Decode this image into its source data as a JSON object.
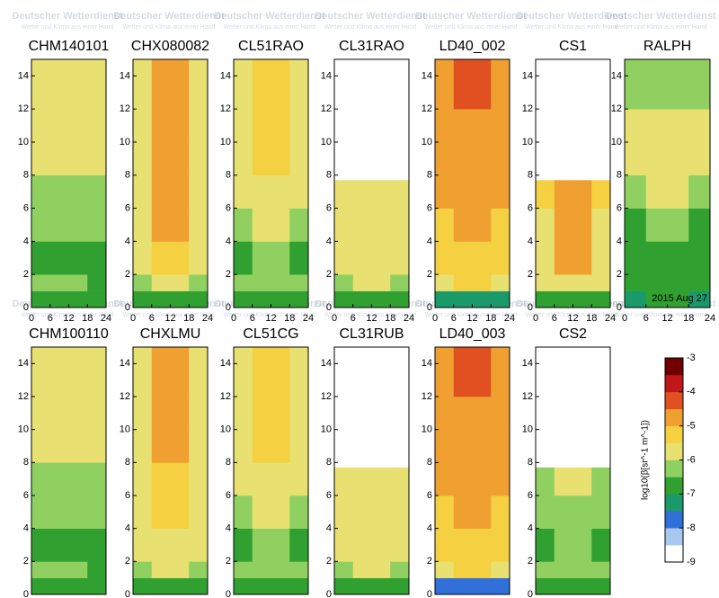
{
  "watermark": {
    "title": "Deutscher Wetterdienst",
    "subtitle": "Wetter und Klima aus einer Hand"
  },
  "chart_data": [
    {
      "type": "heatmap",
      "title": "CHM140101",
      "xlim": [
        0,
        24
      ],
      "ylim": [
        0,
        15
      ],
      "xticks": [
        0,
        6,
        12,
        18,
        24
      ],
      "yticks": [
        0,
        2,
        4,
        6,
        8,
        10,
        12,
        14
      ],
      "x_edges": [
        0,
        6,
        18,
        24
      ],
      "y_edges": [
        0,
        1,
        2,
        4,
        6,
        8,
        10,
        12,
        15
      ],
      "values": [
        [
          -7.0,
          -7.0,
          -7.0
        ],
        [
          -6.5,
          -6.4,
          -6.6
        ],
        [
          -6.8,
          -6.6,
          -6.8
        ],
        [
          -6.4,
          -6.4,
          -6.5
        ],
        [
          -6.2,
          -6.1,
          -6.2
        ],
        [
          -5.9,
          -5.9,
          -6.0
        ],
        [
          -5.9,
          -5.8,
          -5.9
        ],
        [
          -5.9,
          -5.9,
          -5.9
        ]
      ]
    },
    {
      "type": "heatmap",
      "title": "CHX080082",
      "xlim": [
        0,
        24
      ],
      "ylim": [
        0,
        15
      ],
      "xticks": [
        0,
        6,
        12,
        18,
        24
      ],
      "yticks": [
        0,
        2,
        4,
        6,
        8,
        10,
        12,
        14
      ],
      "x_edges": [
        0,
        6,
        18,
        24
      ],
      "y_edges": [
        0,
        1,
        2,
        4,
        6,
        8,
        10,
        12,
        15
      ],
      "values": [
        [
          -6.8,
          -6.7,
          -6.8
        ],
        [
          -6.3,
          -5.7,
          -6.4
        ],
        [
          -6.0,
          -5.2,
          -6.0
        ],
        [
          -5.9,
          -5.0,
          -5.9
        ],
        [
          -5.8,
          -4.8,
          -5.8
        ],
        [
          -5.8,
          -4.7,
          -5.8
        ],
        [
          -5.7,
          -4.7,
          -5.7
        ],
        [
          -5.7,
          -4.7,
          -5.7
        ]
      ]
    },
    {
      "type": "heatmap",
      "title": "CL51RAO",
      "xlim": [
        0,
        24
      ],
      "ylim": [
        0,
        15
      ],
      "xticks": [
        0,
        6,
        12,
        18,
        24
      ],
      "yticks": [
        0,
        2,
        4,
        6,
        8,
        10,
        12,
        14
      ],
      "x_edges": [
        0,
        6,
        18,
        24
      ],
      "y_edges": [
        0,
        1,
        2,
        4,
        6,
        8,
        10,
        12,
        15
      ],
      "values": [
        [
          -7.0,
          -7.0,
          -7.0
        ],
        [
          -6.5,
          -6.3,
          -6.5
        ],
        [
          -6.7,
          -6.2,
          -6.7
        ],
        [
          -6.3,
          -5.8,
          -6.3
        ],
        [
          -6.0,
          -5.6,
          -6.0
        ],
        [
          -5.8,
          -5.5,
          -5.8
        ],
        [
          -5.7,
          -5.5,
          -5.7
        ],
        [
          -5.6,
          -5.5,
          -5.6
        ]
      ]
    },
    {
      "type": "heatmap",
      "title": "CL31RAO",
      "xlim": [
        0,
        24
      ],
      "ylim": [
        0,
        15
      ],
      "xticks": [
        0,
        6,
        12,
        18,
        24
      ],
      "yticks": [
        0,
        2,
        4,
        6,
        8,
        10,
        12,
        14
      ],
      "x_edges": [
        0,
        6,
        18,
        24
      ],
      "y_edges": [
        0,
        1,
        2,
        4,
        6,
        7.7
      ],
      "values": [
        [
          -6.8,
          -6.8,
          -6.8
        ],
        [
          -6.2,
          -6.0,
          -6.3
        ],
        [
          -6.0,
          -5.8,
          -6.0
        ],
        [
          -5.9,
          -5.7,
          -5.9
        ],
        [
          -5.9,
          -5.7,
          -5.9
        ]
      ]
    },
    {
      "type": "heatmap",
      "title": "LD40_002",
      "xlim": [
        0,
        24
      ],
      "ylim": [
        0,
        15
      ],
      "xticks": [
        0,
        6,
        12,
        18,
        24
      ],
      "yticks": [
        0,
        2,
        4,
        6,
        8,
        10,
        12,
        14
      ],
      "x_edges": [
        0,
        6,
        18,
        24
      ],
      "y_edges": [
        0,
        1,
        2,
        4,
        6,
        8,
        10,
        12,
        15
      ],
      "values": [
        [
          -7.5,
          -7.3,
          -7.5
        ],
        [
          -5.8,
          -5.5,
          -5.8
        ],
        [
          -5.5,
          -5.2,
          -5.5
        ],
        [
          -5.2,
          -4.9,
          -5.2
        ],
        [
          -5.0,
          -4.7,
          -5.0
        ],
        [
          -4.9,
          -4.6,
          -4.9
        ],
        [
          -4.8,
          -4.6,
          -4.8
        ],
        [
          -4.8,
          -4.5,
          -4.8
        ]
      ]
    },
    {
      "type": "heatmap",
      "title": "CS1",
      "xlim": [
        0,
        24
      ],
      "ylim": [
        0,
        15
      ],
      "xticks": [
        0,
        6,
        12,
        18,
        24
      ],
      "yticks": [
        0,
        2,
        4,
        6,
        8,
        10,
        12,
        14
      ],
      "x_edges": [
        0,
        6,
        18,
        24
      ],
      "y_edges": [
        0,
        1,
        2,
        4,
        6,
        7.7
      ],
      "values": [
        [
          -6.8,
          -6.8,
          -6.8
        ],
        [
          -6.0,
          -5.6,
          -6.0
        ],
        [
          -5.7,
          -5.0,
          -5.7
        ],
        [
          -5.6,
          -4.8,
          -5.6
        ],
        [
          -5.5,
          -4.7,
          -5.5
        ]
      ]
    },
    {
      "type": "heatmap",
      "title": "RALPH",
      "annotation": "2015 Aug 27",
      "xlim": [
        0,
        24
      ],
      "ylim": [
        0,
        15
      ],
      "xticks": [
        0,
        6,
        12,
        18,
        24
      ],
      "yticks": [
        0,
        2,
        4,
        6,
        8,
        10,
        12,
        14
      ],
      "x_edges": [
        0,
        6,
        18,
        24
      ],
      "y_edges": [
        0,
        1,
        2,
        4,
        6,
        8,
        10,
        12,
        15
      ],
      "values": [
        [
          -7.2,
          -7.0,
          -7.2
        ],
        [
          -6.9,
          -6.7,
          -6.9
        ],
        [
          -7.0,
          -6.8,
          -7.0
        ],
        [
          -6.6,
          -6.5,
          -6.6
        ],
        [
          -6.3,
          -6.0,
          -6.3
        ],
        [
          -6.0,
          -5.8,
          -6.0
        ],
        [
          -5.9,
          -5.9,
          -5.9
        ],
        [
          -6.5,
          -6.3,
          -6.5
        ]
      ]
    },
    {
      "type": "heatmap",
      "title": "CHM100110",
      "xlim": [
        0,
        24
      ],
      "ylim": [
        0,
        15
      ],
      "yticks": [
        0,
        2,
        4,
        6,
        8,
        10,
        12,
        14
      ],
      "x_edges": [
        0,
        6,
        18,
        24
      ],
      "y_edges": [
        0,
        1,
        2,
        4,
        6,
        8,
        10,
        12,
        15
      ],
      "values": [
        [
          -7.0,
          -7.0,
          -7.0
        ],
        [
          -6.5,
          -6.4,
          -6.6
        ],
        [
          -6.8,
          -6.6,
          -6.8
        ],
        [
          -6.4,
          -6.4,
          -6.5
        ],
        [
          -6.2,
          -6.1,
          -6.2
        ],
        [
          -5.9,
          -5.9,
          -6.0
        ],
        [
          -5.9,
          -5.8,
          -5.9
        ],
        [
          -5.9,
          -5.9,
          -5.9
        ]
      ]
    },
    {
      "type": "heatmap",
      "title": "CHXLMU",
      "xlim": [
        0,
        24
      ],
      "ylim": [
        0,
        15
      ],
      "yticks": [
        0,
        2,
        4,
        6,
        8,
        10,
        12,
        14
      ],
      "x_edges": [
        0,
        6,
        18,
        24
      ],
      "y_edges": [
        0,
        1,
        2,
        4,
        6,
        8,
        10,
        12,
        15
      ],
      "values": [
        [
          -6.8,
          -6.7,
          -6.8
        ],
        [
          -6.3,
          -6.0,
          -6.4
        ],
        [
          -6.0,
          -5.6,
          -6.0
        ],
        [
          -5.9,
          -5.3,
          -5.9
        ],
        [
          -5.8,
          -5.1,
          -5.8
        ],
        [
          -5.8,
          -5.0,
          -5.8
        ],
        [
          -5.7,
          -5.0,
          -5.7
        ],
        [
          -5.7,
          -5.0,
          -5.7
        ]
      ]
    },
    {
      "type": "heatmap",
      "title": "CL51CG",
      "xlim": [
        0,
        24
      ],
      "ylim": [
        0,
        15
      ],
      "yticks": [
        0,
        2,
        4,
        6,
        8,
        10,
        12,
        14
      ],
      "x_edges": [
        0,
        6,
        18,
        24
      ],
      "y_edges": [
        0,
        1,
        2,
        4,
        6,
        8,
        10,
        12,
        15
      ],
      "values": [
        [
          -7.0,
          -7.0,
          -7.0
        ],
        [
          -6.5,
          -6.3,
          -6.5
        ],
        [
          -6.7,
          -6.2,
          -6.7
        ],
        [
          -6.3,
          -5.8,
          -6.3
        ],
        [
          -6.0,
          -5.6,
          -6.0
        ],
        [
          -5.8,
          -5.5,
          -5.8
        ],
        [
          -5.7,
          -5.5,
          -5.7
        ],
        [
          -5.6,
          -5.5,
          -5.6
        ]
      ]
    },
    {
      "type": "heatmap",
      "title": "CL31RUB",
      "xlim": [
        0,
        24
      ],
      "ylim": [
        0,
        15
      ],
      "yticks": [
        0,
        2,
        4,
        6,
        8,
        10,
        12,
        14
      ],
      "x_edges": [
        0,
        6,
        18,
        24
      ],
      "y_edges": [
        0,
        1,
        2,
        4,
        6,
        7.7
      ],
      "values": [
        [
          -6.7,
          -6.7,
          -6.7
        ],
        [
          -6.2,
          -6.0,
          -6.2
        ],
        [
          -6.0,
          -5.9,
          -6.0
        ],
        [
          -5.9,
          -5.8,
          -5.9
        ],
        [
          -5.8,
          -5.7,
          -5.8
        ]
      ]
    },
    {
      "type": "heatmap",
      "title": "LD40_003",
      "xlim": [
        0,
        24
      ],
      "ylim": [
        0,
        15
      ],
      "yticks": [
        0,
        2,
        4,
        6,
        8,
        10,
        12,
        14
      ],
      "x_edges": [
        0,
        6,
        18,
        24
      ],
      "y_edges": [
        0,
        1,
        2,
        4,
        6,
        8,
        10,
        12,
        15
      ],
      "values": [
        [
          -7.8,
          -7.6,
          -7.8
        ],
        [
          -5.8,
          -5.5,
          -5.8
        ],
        [
          -5.4,
          -5.1,
          -5.4
        ],
        [
          -5.2,
          -4.9,
          -5.2
        ],
        [
          -5.0,
          -4.7,
          -5.0
        ],
        [
          -4.9,
          -4.6,
          -4.9
        ],
        [
          -4.8,
          -4.6,
          -4.8
        ],
        [
          -4.7,
          -4.5,
          -4.7
        ]
      ]
    },
    {
      "type": "heatmap",
      "title": "CS2",
      "xlim": [
        0,
        24
      ],
      "ylim": [
        0,
        15
      ],
      "yticks": [
        0,
        2,
        4,
        6,
        8,
        10,
        12,
        14
      ],
      "x_edges": [
        0,
        6,
        18,
        24
      ],
      "y_edges": [
        0,
        1,
        2,
        4,
        6,
        7.7
      ],
      "values": [
        [
          -6.9,
          -6.9,
          -6.9
        ],
        [
          -6.5,
          -6.3,
          -6.5
        ],
        [
          -6.6,
          -6.4,
          -6.6
        ],
        [
          -6.4,
          -6.2,
          -6.4
        ],
        [
          -6.2,
          -6.0,
          -6.2
        ]
      ]
    },
    {
      "type": "colorbar",
      "label": "log10(β[sr^-1 m^-1])",
      "lim": [
        -9,
        -3
      ],
      "ticks": [
        -3,
        -4,
        -5,
        -6,
        -7,
        -8,
        -9
      ],
      "colors": [
        "#ffffff",
        "#a8c8f0",
        "#3070d8",
        "#1a9a6a",
        "#30a030",
        "#8fd060",
        "#e8e070",
        "#f5d040",
        "#f0a030",
        "#e05020",
        "#c01818",
        "#700000"
      ]
    }
  ]
}
